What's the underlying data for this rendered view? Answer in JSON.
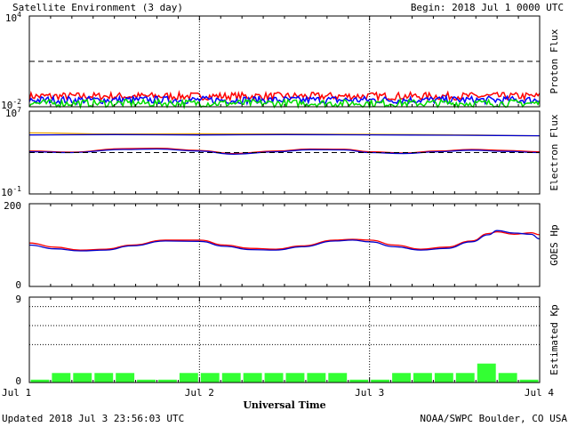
{
  "header": {
    "title": "Satellite Environment (3 day)",
    "begin": "Begin:  2018 Jul 1 0000 UTC"
  },
  "footer": {
    "updated": "Updated 2018 Jul  3 23:56:03 UTC",
    "credit": "NOAA/SWPC Boulder, CO USA"
  },
  "x_axis": {
    "label": "Universal Time",
    "ticks": [
      "Jul 1",
      "Jul 2",
      "Jul 3",
      "Jul 4"
    ],
    "range_days": [
      0,
      3
    ]
  },
  "chart_data": [
    {
      "type": "line",
      "ylabel": "Proton Flux",
      "y_scale": "log",
      "ylim": [
        0.01,
        10000
      ],
      "y_ticks": [
        {
          "base": "10",
          "exp": "4",
          "value": 10000
        },
        {
          "base": "10",
          "exp": "-2",
          "value": 0.01
        }
      ],
      "threshold": 10,
      "colors": [
        "#ff0000",
        "#0000ff",
        "#00dd00"
      ],
      "series": [
        {
          "color": "#ff0000",
          "level": 0.05
        },
        {
          "color": "#0000ff",
          "level": 0.028
        },
        {
          "color": "#00dd00",
          "level": 0.017
        }
      ]
    },
    {
      "type": "line",
      "ylabel": "Electron Flux",
      "y_scale": "log",
      "ylim": [
        0.1,
        10000000
      ],
      "y_ticks": [
        {
          "base": "10",
          "exp": "7",
          "value": 10000000
        },
        {
          "base": "10",
          "exp": "-1",
          "value": 0.1
        }
      ],
      "threshold": 1000,
      "colors": [
        "#e8a000",
        "#0000cc",
        "#ff0000"
      ],
      "series": [
        {
          "color": "#e8a000",
          "x": [
            0,
            0.5,
            1,
            1.5,
            2,
            2.5,
            3
          ],
          "y": [
            80000,
            62000,
            65000,
            62000,
            58000,
            52000,
            42000
          ]
        },
        {
          "color": "#0000cc",
          "x": [
            0,
            0.5,
            1,
            1.5,
            2,
            2.5,
            3
          ],
          "y": [
            50000,
            55000,
            50000,
            55000,
            52000,
            48000,
            42000
          ]
        },
        {
          "color": "#ff0000",
          "x": [
            0,
            0.25,
            0.55,
            0.75,
            1.0,
            1.2,
            1.45,
            1.65,
            1.85,
            2.0,
            2.2,
            2.4,
            2.6,
            2.8,
            3.0
          ],
          "y": [
            1400,
            1100,
            2400,
            2600,
            1600,
            800,
            1400,
            2200,
            2100,
            1200,
            900,
            1400,
            2000,
            1600,
            1200
          ]
        },
        {
          "color": "#0000cc",
          "x": [
            0,
            0.25,
            0.55,
            0.75,
            1.0,
            1.2,
            1.45,
            1.65,
            1.85,
            2.0,
            2.2,
            2.4,
            2.6,
            2.8,
            3.0
          ],
          "y": [
            1200,
            1000,
            2000,
            2200,
            1400,
            700,
            1200,
            1900,
            1800,
            1000,
            800,
            1200,
            1700,
            1300,
            1000
          ]
        }
      ]
    },
    {
      "type": "line",
      "ylabel": "GOES Hp",
      "ylim": [
        0,
        200
      ],
      "y_ticks": [
        {
          "label": "200",
          "value": 200
        },
        {
          "label": "0",
          "value": 0
        }
      ],
      "series": [
        {
          "color": "#ff0000",
          "x": [
            0,
            0.15,
            0.3,
            0.45,
            0.6,
            0.8,
            1.0,
            1.15,
            1.3,
            1.45,
            1.6,
            1.8,
            1.9,
            2.0,
            2.15,
            2.3,
            2.45,
            2.6,
            2.7,
            2.75,
            2.85,
            2.95,
            3.0
          ],
          "y": [
            105,
            95,
            88,
            90,
            100,
            112,
            112,
            100,
            92,
            90,
            98,
            112,
            114,
            112,
            100,
            90,
            95,
            110,
            128,
            132,
            126,
            130,
            125
          ]
        },
        {
          "color": "#0000cc",
          "x": [
            0,
            0.15,
            0.3,
            0.45,
            0.6,
            0.8,
            1.0,
            1.15,
            1.3,
            1.45,
            1.6,
            1.8,
            1.9,
            2.0,
            2.15,
            2.3,
            2.45,
            2.6,
            2.7,
            2.75,
            2.85,
            2.95,
            3.0
          ],
          "y": [
            100,
            91,
            86,
            88,
            98,
            110,
            109,
            97,
            89,
            88,
            96,
            110,
            112,
            108,
            96,
            88,
            92,
            108,
            125,
            135,
            129,
            126,
            115
          ]
        }
      ]
    },
    {
      "type": "bar",
      "ylabel": "Estimated Kp",
      "ylim": [
        0,
        9
      ],
      "y_ticks": [
        {
          "label": "9",
          "value": 9
        },
        {
          "label": "0",
          "value": 0
        }
      ],
      "grid_levels": [
        4,
        6,
        8
      ],
      "bar_color": "#33ff33",
      "values": [
        0.3,
        1,
        1,
        1,
        1,
        0.3,
        0.3,
        1,
        1,
        1,
        1,
        1,
        1,
        1,
        1,
        0.3,
        0.3,
        1,
        1,
        1,
        1,
        2,
        1,
        0.3
      ]
    }
  ]
}
